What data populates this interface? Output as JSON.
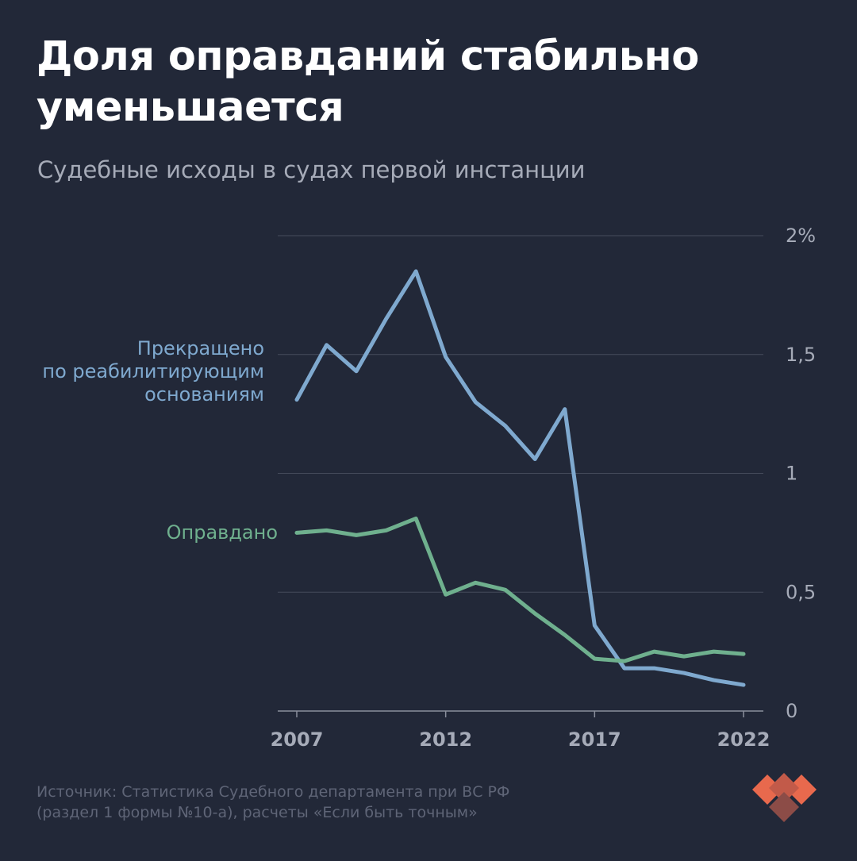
{
  "title_lines": [
    "Доля оправданий стабильно",
    "уменьшается"
  ],
  "subtitle": "Судебные исходы в судах первой инстанции",
  "source_lines": [
    "Источник: Статистика Судебного департамента при ВС РФ",
    "(раздел 1 формы №10-а), расчеты «Если быть точным»"
  ],
  "logo": {
    "icon": "esli-byt-tochnym-logo-icon",
    "colors": [
      "#e8694d",
      "#c25a49",
      "#8c4c47"
    ]
  },
  "chart_data": {
    "type": "line",
    "x": [
      2007,
      2008,
      2009,
      2010,
      2011,
      2012,
      2013,
      2014,
      2015,
      2016,
      2017,
      2018,
      2019,
      2020,
      2021,
      2022
    ],
    "xticks": [
      2007,
      2012,
      2017,
      2022
    ],
    "xtick_labels": [
      "2007",
      "2012",
      "2017",
      "2022"
    ],
    "ylim": [
      0,
      2
    ],
    "yticks": [
      0,
      0.5,
      1,
      1.5,
      2
    ],
    "ytick_labels": [
      "0",
      "0,5",
      "1",
      "1,5",
      "2%"
    ],
    "y_axis_side": "right",
    "grid": true,
    "series": [
      {
        "key": "rehab",
        "label_lines": [
          "Прекращено",
          "по реабилитирующим",
          "основаниям"
        ],
        "color": "#7fa9cf",
        "values": [
          1.31,
          1.54,
          1.43,
          1.65,
          1.85,
          1.49,
          1.3,
          1.2,
          1.06,
          1.27,
          0.36,
          0.18,
          0.18,
          0.16,
          0.13,
          0.11
        ]
      },
      {
        "key": "acquitted",
        "label_lines": [
          "Оправдано"
        ],
        "color": "#6fb08e",
        "values": [
          0.75,
          0.76,
          0.74,
          0.76,
          0.81,
          0.49,
          0.54,
          0.51,
          0.41,
          0.32,
          0.22,
          0.21,
          0.25,
          0.23,
          0.25,
          0.24
        ]
      }
    ]
  }
}
